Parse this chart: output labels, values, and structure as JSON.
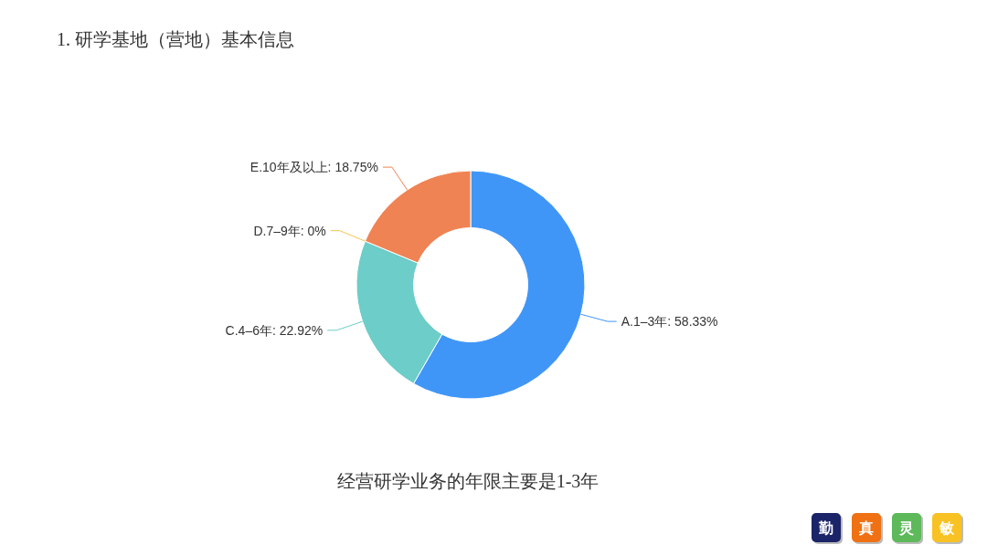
{
  "chart_data": {
    "type": "donut",
    "title": "1. 研学基地（营地）基本信息",
    "categories": [
      "A.1–3年",
      "C.4–6年",
      "D.7–9年",
      "E.10年及以上"
    ],
    "values": [
      58.33,
      22.92,
      0,
      18.75
    ],
    "colors": [
      "#4096f7",
      "#6dcdc8",
      "#f5c34c",
      "#ef8354"
    ],
    "value_labels": [
      "58.33%",
      "22.92%",
      "0%",
      "18.75%"
    ],
    "annotations": [
      "经营研学业务的年限主要是1-3年",
      "勤",
      "真",
      "灵",
      "敏"
    ]
  }
}
